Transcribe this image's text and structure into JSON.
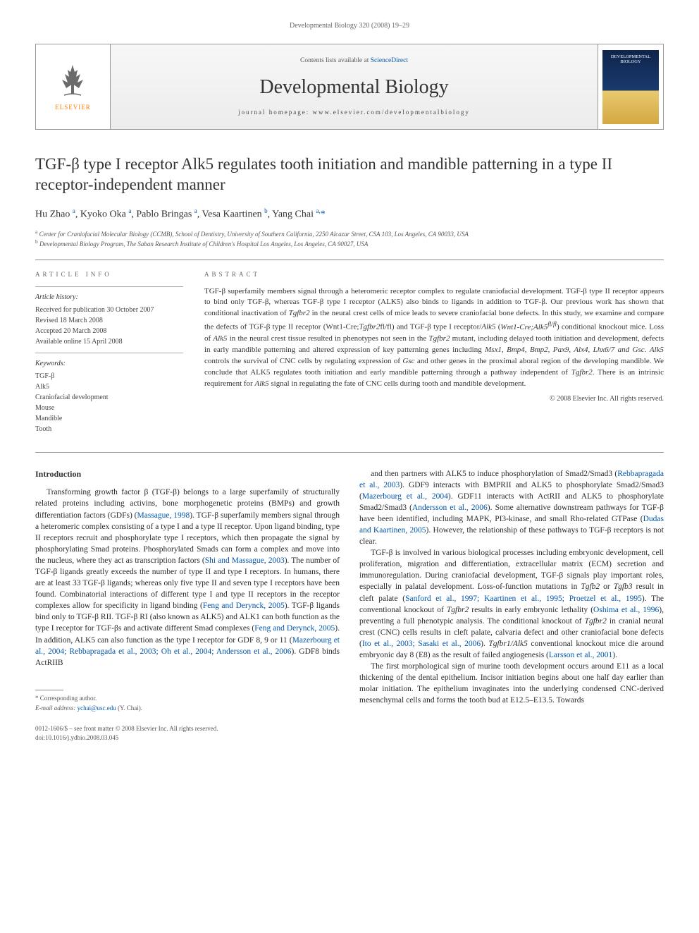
{
  "page": {
    "header": "Developmental Biology 320 (2008) 19–29"
  },
  "banner": {
    "contents_prefix": "Contents lists available at ",
    "contents_link": "ScienceDirect",
    "journal_name": "Developmental Biology",
    "homepage_label": "journal homepage: www.elsevier.com/developmentalbiology",
    "publisher": "ELSEVIER",
    "cover_title": "DEVELOPMENTAL BIOLOGY"
  },
  "article": {
    "title": "TGF-β type I receptor Alk5 regulates tooth initiation and mandible patterning in a type II receptor-independent manner",
    "authors_html": "Hu Zhao <sup>a</sup>, Kyoko Oka <sup>a</sup>, Pablo Bringas <sup>a</sup>, Vesa Kaartinen <sup>b</sup>, Yang Chai <sup>a,</sup><span class='star'>*</span>",
    "affiliations": [
      {
        "key": "a",
        "text": "Center for Craniofacial Molecular Biology (CCMB), School of Dentistry, University of Southern California, 2250 Alcazar Street, CSA 103, Los Angeles, CA 90033, USA"
      },
      {
        "key": "b",
        "text": "Developmental Biology Program, The Saban Research Institute of Children's Hospital Los Angeles, Los Angeles, CA 90027, USA"
      }
    ]
  },
  "meta": {
    "article_info_label": "ARTICLE INFO",
    "abstract_label": "ABSTRACT",
    "history_label": "Article history:",
    "history": [
      "Received for publication 30 October 2007",
      "Revised 18 March 2008",
      "Accepted 20 March 2008",
      "Available online 15 April 2008"
    ],
    "keywords_label": "Keywords:",
    "keywords": [
      "TGF-β",
      "Alk5",
      "Craniofacial development",
      "Mouse",
      "Mandible",
      "Tooth"
    ]
  },
  "abstract": {
    "text": "TGF-β superfamily members signal through a heteromeric receptor complex to regulate craniofacial development. TGF-β type II receptor appears to bind only TGF-β, whereas TGF-β type I receptor (ALK5) also binds to ligands in addition to TGF-β. Our previous work has shown that conditional inactivation of Tgfbr2 in the neural crest cells of mice leads to severe craniofacial bone defects. In this study, we examine and compare the defects of TGF-β type II receptor (Wnt1-Cre;Tgfbr2fl/fl) and TGF-β type I receptor/Alk5 (Wnt1-Cre;Alk5fl/fl) conditional knockout mice. Loss of Alk5 in the neural crest tissue resulted in phenotypes not seen in the Tgfbr2 mutant, including delayed tooth initiation and development, defects in early mandible patterning and altered expression of key patterning genes including Msx1, Bmp4, Bmp2, Pax9, Alx4, Lhx6/7 and Gsc. Alk5 controls the survival of CNC cells by regulating expression of Gsc and other genes in the proximal aboral region of the developing mandible. We conclude that ALK5 regulates tooth initiation and early mandible patterning through a pathway independent of Tgfbr2. There is an intrinsic requirement for Alk5 signal in regulating the fate of CNC cells during tooth and mandible development.",
    "copyright": "© 2008 Elsevier Inc. All rights reserved."
  },
  "body": {
    "intro_heading": "Introduction",
    "left_paragraphs": [
      "Transforming growth factor β (TGF-β) belongs to a large superfamily of structurally related proteins including activins, bone morphogenetic proteins (BMPs) and growth differentiation factors (GDFs) (<span class='ref'>Massague, 1998</span>). TGF-β superfamily members signal through a heteromeric complex consisting of a type I and a type II receptor. Upon ligand binding, type II receptors recruit and phosphorylate type I receptors, which then propagate the signal by phosphorylating Smad proteins. Phosphorylated Smads can form a complex and move into the nucleus, where they act as transcription factors (<span class='ref'>Shi and Massague, 2003</span>). The number of TGF-β ligands greatly exceeds the number of type II and type I receptors. In humans, there are at least 33 TGF-β ligands; whereas only five type II and seven type I receptors have been found. Combinatorial interactions of different type I and type II receptors in the receptor complexes allow for specificity in ligand binding (<span class='ref'>Feng and Derynck, 2005</span>). TGF-β ligands bind only to TGF-β RII. TGF-β RI (also known as ALK5) and ALK1 can both function as the type I receptor for TGF-βs and activate different Smad complexes (<span class='ref'>Feng and Derynck, 2005</span>). In addition, ALK5 can also function as the type I receptor for GDF 8, 9 or 11 (<span class='ref'>Mazerbourg et al., 2004; Rebbapragada et al., 2003; Oh et al., 2004; Andersson et al., 2006</span>). GDF8 binds ActRIIB"
    ],
    "right_paragraphs": [
      "and then partners with ALK5 to induce phosphorylation of Smad2/Smad3 (<span class='ref'>Rebbapragada et al., 2003</span>). GDF9 interacts with BMPRII and ALK5 to phosphorylate Smad2/Smad3 (<span class='ref'>Mazerbourg et al., 2004</span>). GDF11 interacts with ActRII and ALK5 to phosphorylate Smad2/Smad3 (<span class='ref'>Andersson et al., 2006</span>). Some alternative downstream pathways for TGF-β have been identified, including MAPK, PI3-kinase, and small Rho-related GTPase (<span class='ref'>Dudas and Kaartinen, 2005</span>). However, the relationship of these pathways to TGF-β receptors is not clear.",
      "TGF-β is involved in various biological processes including embryonic development, cell proliferation, migration and differentiation, extracellular matrix (ECM) secretion and immunoregulation. During craniofacial development, TGF-β signals play important roles, especially in palatal development. Loss-of-function mutations in <span class='ital'>Tgfb2</span> or <span class='ital'>Tgfb3</span> result in cleft palate (<span class='ref'>Sanford et al., 1997; Kaartinen et al., 1995; Proetzel et al., 1995</span>). The conventional knockout of <span class='ital'>Tgfbr2</span> results in early embryonic lethality (<span class='ref'>Oshima et al., 1996</span>), preventing a full phenotypic analysis. The conditional knockout of <span class='ital'>Tgfbr2</span> in cranial neural crest (CNC) cells results in cleft palate, calvaria defect and other craniofacial bone defects (<span class='ref'>Ito et al., 2003; Sasaki et al., 2006</span>). <span class='ital'>Tgfbr1/Alk5</span> conventional knockout mice die around embryonic day 8 (E8) as the result of failed angiogenesis (<span class='ref'>Larsson et al., 2001</span>).",
      "The first morphological sign of murine tooth development occurs around E11 as a local thickening of the dental epithelium. Incisor initiation begins about one half day earlier than molar initiation. The epithelium invaginates into the underlying condensed CNC-derived mesenchymal cells and forms the tooth bud at E12.5–E13.5. Towards"
    ]
  },
  "footer": {
    "corresponding": "* Corresponding author.",
    "email_label": "E-mail address:",
    "email": "ychai@usc.edu",
    "email_name": "(Y. Chai).",
    "issn": "0012-1606/$ – see front matter © 2008 Elsevier Inc. All rights reserved.",
    "doi": "doi:10.1016/j.ydbio.2008.03.045"
  },
  "colors": {
    "link": "#0055aa",
    "text": "#333333",
    "rule": "#888888",
    "publisher": "#ff7a00"
  }
}
